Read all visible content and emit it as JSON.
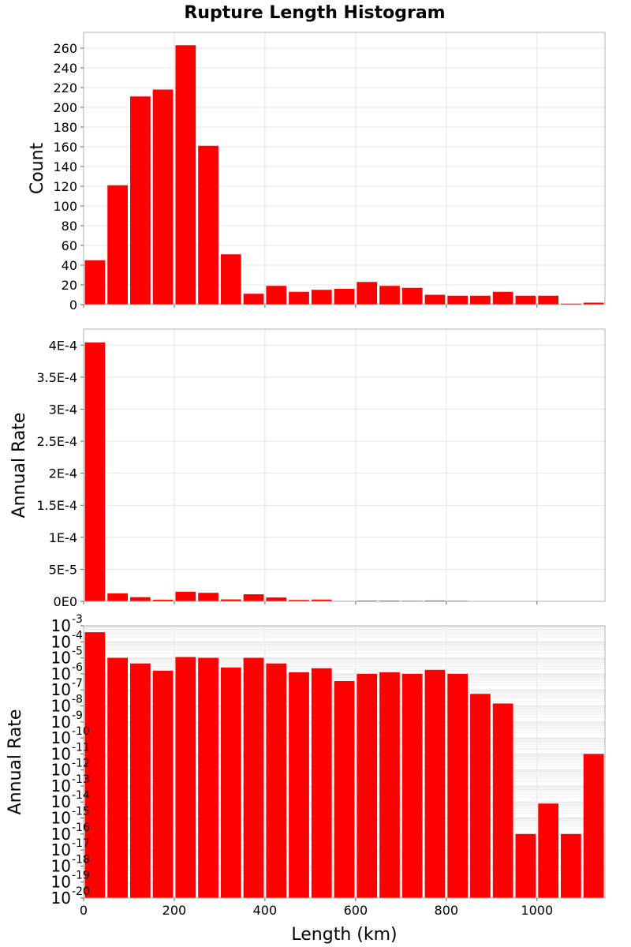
{
  "title": "Rupture Length Histogram",
  "colors": {
    "bar": "#ff0000",
    "grid": "#e4e4e4",
    "frame": "#b0b0b0"
  },
  "chart_data": [
    {
      "type": "bar",
      "name": "count-panel",
      "ylabel": "Count",
      "bin_width": 50,
      "bin_centers": [
        25,
        75,
        125,
        175,
        225,
        275,
        325,
        375,
        425,
        475,
        525,
        575,
        625,
        675,
        725,
        775,
        825,
        875,
        925,
        975,
        1025,
        1075,
        1125
      ],
      "values": [
        45,
        121,
        211,
        218,
        263,
        161,
        51,
        11,
        19,
        13,
        15,
        16,
        23,
        19,
        17,
        10,
        9,
        9,
        13,
        9,
        9,
        1,
        2
      ],
      "ylim": [
        0,
        276
      ],
      "xlim": [
        0,
        1150
      ],
      "yticks": [
        0,
        20,
        40,
        60,
        80,
        100,
        120,
        140,
        160,
        180,
        200,
        220,
        240,
        260
      ],
      "ytick_labels": [
        "0",
        "20",
        "40",
        "60",
        "80",
        "100",
        "120",
        "140",
        "160",
        "180",
        "200",
        "220",
        "240",
        "260"
      ],
      "grid": true
    },
    {
      "type": "bar",
      "name": "rate-linear-panel",
      "ylabel": "Annual Rate",
      "bin_width": 50,
      "bin_centers": [
        25,
        75,
        125,
        175,
        225,
        275,
        325,
        375,
        425,
        475,
        525,
        575,
        625,
        675,
        725,
        775,
        825,
        875,
        925,
        975,
        1025,
        1075,
        1125
      ],
      "values": [
        0.000404,
        1.25e-05,
        6.5e-06,
        2.5e-06,
        1.5e-05,
        1.33e-05,
        3e-06,
        1.1e-05,
        6e-06,
        2.2e-06,
        2.8e-06,
        7e-07,
        1.2e-06,
        1.2e-06,
        1e-06,
        1.3e-06,
        1e-06,
        2e-07,
        5e-08,
        0.0,
        0.0,
        0.0,
        0.0
      ],
      "ylim": [
        0,
        0.000425
      ],
      "xlim": [
        0,
        1150
      ],
      "yticks": [
        0,
        5e-05,
        0.0001,
        0.00015,
        0.0002,
        0.00025,
        0.0003,
        0.00035,
        0.0004
      ],
      "ytick_labels": [
        "0E0",
        "5E-5",
        "1E-4",
        "1.5E-4",
        "2E-4",
        "2.5E-4",
        "3E-4",
        "3.5E-4",
        "4E-4"
      ],
      "grid": true
    },
    {
      "type": "bar",
      "name": "rate-log-panel",
      "ylabel": "Annual Rate",
      "xlabel": "Length (km)",
      "yscale": "log",
      "bin_width": 50,
      "bin_centers": [
        25,
        75,
        125,
        175,
        225,
        275,
        325,
        375,
        425,
        475,
        525,
        575,
        625,
        675,
        725,
        775,
        825,
        875,
        925,
        975,
        1025,
        1075,
        1125
      ],
      "log10_values": [
        -3.4,
        -5.0,
        -5.35,
        -5.8,
        -4.95,
        -5.0,
        -5.6,
        -5.0,
        -5.35,
        -5.9,
        -5.65,
        -6.45,
        -6.0,
        -5.9,
        -6.0,
        -5.75,
        -6.0,
        -7.25,
        -7.85,
        -16.0,
        -14.1,
        -16.0,
        -11.0
      ],
      "ylim_log10": [
        -20,
        -3
      ],
      "ytick_exponents": [
        "-20",
        "-19",
        "-18",
        "-17",
        "-16",
        "-15",
        "-14",
        "-13",
        "-12",
        "-11",
        "-10",
        "-9",
        "-8",
        "-7",
        "-6",
        "-5",
        "-4",
        "-3"
      ],
      "ytick_mantissa": "10",
      "xlim": [
        0,
        1150
      ],
      "xticks": [
        0,
        200,
        400,
        600,
        800,
        1000
      ],
      "xtick_labels": [
        "0",
        "200",
        "400",
        "600",
        "800",
        "1000"
      ],
      "grid": true
    }
  ]
}
